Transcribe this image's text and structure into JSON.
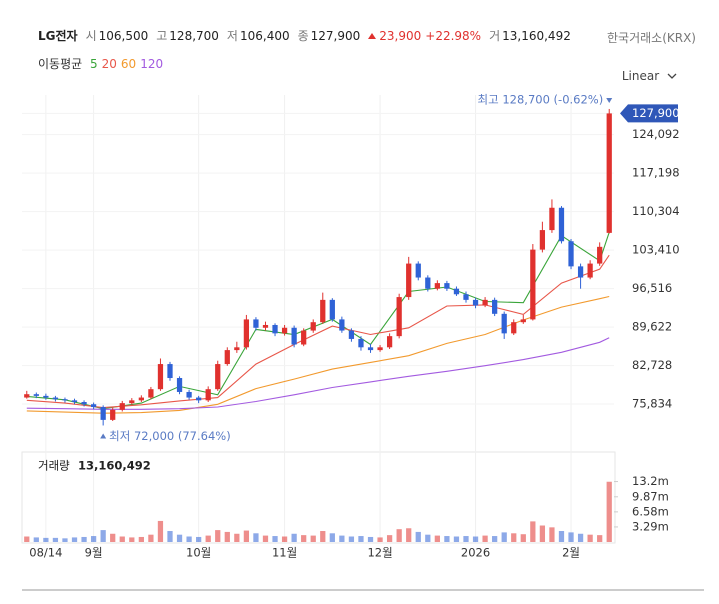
{
  "chart_data": {
    "type": "candlestick",
    "title": "LG전자",
    "quote": [
      {
        "label": "시",
        "value": "106,500"
      },
      {
        "label": "고",
        "value": "128,700"
      },
      {
        "label": "저",
        "value": "106,400"
      },
      {
        "label": "종",
        "value": "127,900"
      }
    ],
    "change": "23,900",
    "change_pct": "+22.98%",
    "volume_quote": {
      "label": "거",
      "value": "13,160,492"
    },
    "exchange": "한국거래소(KRX)",
    "ma_label": "이동평균",
    "scale_label": "Linear",
    "up_color": "#e0312e",
    "down_color": "#2f62d6",
    "categories": [
      null,
      null,
      "08/14",
      null,
      null,
      null,
      null,
      "9월",
      null,
      null,
      null,
      null,
      null,
      null,
      null,
      null,
      null,
      null,
      "10월",
      null,
      null,
      null,
      null,
      null,
      null,
      null,
      null,
      "11월",
      null,
      null,
      null,
      null,
      null,
      null,
      null,
      null,
      null,
      "12월",
      null,
      null,
      null,
      null,
      null,
      null,
      null,
      null,
      null,
      "2026",
      null,
      null,
      null,
      null,
      null,
      null,
      null,
      null,
      null,
      "2월",
      null,
      null,
      null,
      null
    ],
    "open": [
      77000,
      77600,
      77300,
      77000,
      76700,
      76500,
      76200,
      75800,
      75300,
      73000,
      74800,
      76000,
      76500,
      77000,
      78500,
      83000,
      80500,
      78000,
      77000,
      76500,
      78500,
      83000,
      85500,
      86000,
      91000,
      89500,
      90000,
      88500,
      89500,
      86500,
      89000,
      90500,
      94500,
      91000,
      89000,
      87500,
      86000,
      85500,
      86000,
      88000,
      95000,
      101000,
      98500,
      96500,
      97500,
      96500,
      95500,
      94500,
      93500,
      94500,
      92000,
      88500,
      90500,
      91000,
      103500,
      107000,
      111000,
      105000,
      100500,
      98500,
      101000,
      106500
    ],
    "high": [
      78200,
      77900,
      77700,
      77300,
      77000,
      76800,
      76500,
      76100,
      75600,
      75200,
      76400,
      76900,
      77400,
      78900,
      84000,
      83400,
      80800,
      78400,
      77300,
      79000,
      83600,
      86000,
      87000,
      91800,
      91400,
      90600,
      90300,
      90000,
      89900,
      89400,
      91000,
      95800,
      94800,
      91500,
      89400,
      88000,
      86600,
      86400,
      88500,
      95600,
      102200,
      101400,
      98900,
      98000,
      97900,
      96900,
      96000,
      94900,
      95000,
      94900,
      92400,
      91000,
      91800,
      104500,
      108500,
      112500,
      111300,
      105400,
      101000,
      101600,
      104800,
      128700
    ],
    "low": [
      76800,
      76900,
      76600,
      76300,
      76100,
      75800,
      75400,
      74900,
      72000,
      72800,
      74500,
      75700,
      76200,
      76700,
      78200,
      80000,
      77600,
      76600,
      76000,
      76200,
      78200,
      82700,
      85000,
      85600,
      89000,
      89000,
      88000,
      88100,
      86000,
      86200,
      88600,
      90200,
      90600,
      88600,
      87000,
      85400,
      85000,
      85200,
      85700,
      87600,
      94500,
      98000,
      96000,
      96200,
      96100,
      95200,
      94000,
      93000,
      93200,
      91600,
      87500,
      88200,
      90200,
      90800,
      103000,
      106500,
      104600,
      100000,
      96500,
      98200,
      100600,
      106400
    ],
    "close": [
      77600,
      77300,
      77000,
      76700,
      76500,
      76200,
      75800,
      75300,
      73000,
      74800,
      76000,
      76500,
      77000,
      78500,
      83000,
      80500,
      78000,
      77000,
      76500,
      78500,
      83000,
      85500,
      86000,
      91000,
      89500,
      90000,
      88500,
      89500,
      86500,
      89000,
      90500,
      94500,
      91000,
      89000,
      87500,
      86000,
      85500,
      86000,
      88000,
      95000,
      101000,
      98500,
      96500,
      97500,
      96500,
      95500,
      94500,
      93500,
      94500,
      92000,
      88500,
      90500,
      91000,
      103500,
      107000,
      111000,
      105000,
      100500,
      98500,
      101000,
      104000,
      127900
    ],
    "volume": [
      1200000,
      1000000,
      900000,
      900000,
      800000,
      1000000,
      1100000,
      1300000,
      2600000,
      1800000,
      1200000,
      1000000,
      1100000,
      1600000,
      4600000,
      2400000,
      1600000,
      1200000,
      1100000,
      1400000,
      2600000,
      2200000,
      1800000,
      2500000,
      1900000,
      1400000,
      1300000,
      1200000,
      1800000,
      1500000,
      1400000,
      2400000,
      1900000,
      1400000,
      1200000,
      1300000,
      1100000,
      1000000,
      1500000,
      2800000,
      3000000,
      2200000,
      1600000,
      1400000,
      1300000,
      1200000,
      1300000,
      1200000,
      1400000,
      1300000,
      2100000,
      1900000,
      1700000,
      4500000,
      3600000,
      3200000,
      2400000,
      2100000,
      1800000,
      1600000,
      1500000,
      13160492
    ],
    "ma": [
      {
        "name": "5",
        "color": "#3aa53a",
        "x": [
          0,
          4,
          8,
          12,
          16,
          20,
          24,
          28,
          32,
          36,
          40,
          44,
          48,
          52,
          56,
          60,
          61
        ],
        "values": [
          77200,
          76600,
          75000,
          76000,
          79000,
          77500,
          89200,
          88300,
          91000,
          86500,
          96000,
          96800,
          94200,
          94000,
          106000,
          101500,
          106600
        ]
      },
      {
        "name": "20",
        "color": "#e8574a",
        "x": [
          0,
          4,
          8,
          12,
          16,
          20,
          24,
          28,
          32,
          36,
          40,
          44,
          48,
          52,
          56,
          60,
          61
        ],
        "values": [
          76500,
          76000,
          75200,
          75700,
          76400,
          77000,
          83000,
          86500,
          89800,
          88300,
          89500,
          93400,
          93600,
          91900,
          97500,
          100000,
          102500
        ]
      },
      {
        "name": "60",
        "color": "#f29a2e",
        "x": [
          0,
          4,
          8,
          12,
          16,
          20,
          24,
          28,
          32,
          36,
          40,
          44,
          48,
          52,
          56,
          60,
          61
        ],
        "values": [
          74600,
          74400,
          74200,
          74300,
          74700,
          75800,
          78600,
          80300,
          82100,
          83300,
          84500,
          86700,
          88300,
          90900,
          93200,
          94700,
          95100
        ]
      },
      {
        "name": "120",
        "color": "#a35be0",
        "x": [
          0,
          4,
          8,
          12,
          16,
          20,
          24,
          28,
          32,
          36,
          40,
          44,
          48,
          52,
          56,
          60,
          61
        ],
        "values": [
          75100,
          75000,
          74900,
          74900,
          75000,
          75300,
          76300,
          77500,
          78800,
          79800,
          80800,
          81700,
          82700,
          83800,
          85100,
          86900,
          87700
        ]
      }
    ],
    "ylim": [
      68500,
      131200
    ],
    "yticks": [
      {
        "value": 127900,
        "label": "127,900"
      },
      {
        "value": 124092,
        "label": "124,092"
      },
      {
        "value": 117198,
        "label": "117,198"
      },
      {
        "value": 110304,
        "label": "110,304"
      },
      {
        "value": 103410,
        "label": "103,410"
      },
      {
        "value": 96516,
        "label": "96,516"
      },
      {
        "value": 89622,
        "label": "89,622"
      },
      {
        "value": 82728,
        "label": "82,728"
      },
      {
        "value": 75834,
        "label": "75,834"
      }
    ],
    "volume_label": "거래량",
    "volume_value": "13,160,492",
    "volume_ylim": [
      0,
      19000000
    ],
    "volume_ticks": [
      {
        "value": 13200000,
        "label": "13.2m"
      },
      {
        "value": 9870000,
        "label": "9.87m"
      },
      {
        "value": 6580000,
        "label": "6.58m"
      },
      {
        "value": 3290000,
        "label": "3.29m"
      }
    ],
    "annotations": [
      {
        "text": "최고 128,700 (-0.62%)",
        "index": 61,
        "value": 128700
      },
      {
        "text": "최저 72,000 (77.64%)",
        "index": 8,
        "value": 72000
      }
    ]
  }
}
